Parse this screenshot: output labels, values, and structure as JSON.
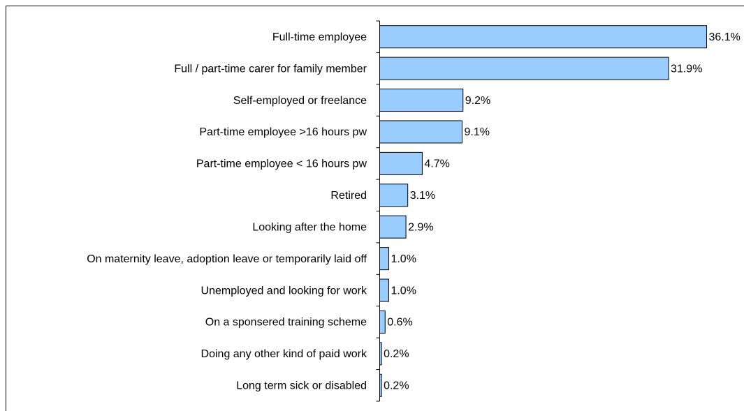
{
  "chart_data": {
    "type": "hbar",
    "categories": [
      "Full-time employee",
      "Full / part-time carer for family member",
      "Self-employed or freelance",
      "Part-time employee >16 hours pw",
      "Part-time employee < 16 hours pw",
      "Retired",
      "Looking after the home",
      "On maternity leave, adoption leave or temporarily laid off",
      "Unemployed and looking for work",
      "On a sponsered training scheme",
      "Doing any other kind of paid work",
      "Long term sick or disabled"
    ],
    "values": [
      36.1,
      31.9,
      9.2,
      9.1,
      4.7,
      3.1,
      2.9,
      1.0,
      1.0,
      0.6,
      0.2,
      0.2
    ],
    "value_labels": [
      "36.1%",
      "31.9%",
      "9.2%",
      "9.1%",
      "4.7%",
      "3.1%",
      "2.9%",
      "1.0%",
      "1.0%",
      "0.6%",
      "0.2%",
      "0.2%"
    ],
    "color": "#99ccff"
  }
}
